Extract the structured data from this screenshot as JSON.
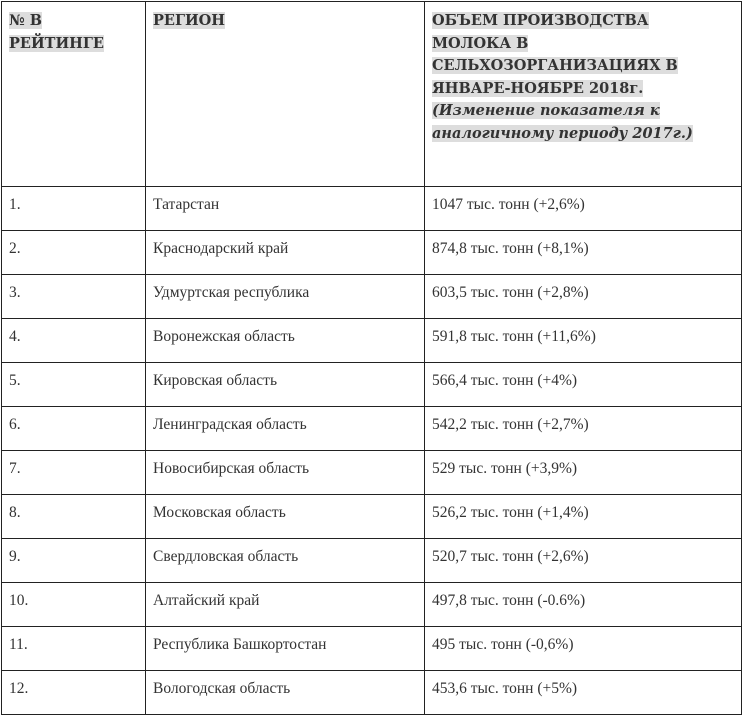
{
  "table": {
    "headers": {
      "rank_line1": "№ В",
      "rank_line2": "РЕЙТИНГЕ",
      "region": "РЕГИОН",
      "volume_lines": [
        "ОБЪЕМ ПРОИЗВОДСТВА",
        "МОЛОКА В",
        "СЕЛЬХОЗОРГАНИЗАЦИЯХ В",
        "ЯНВАРЕ-НОЯБРЕ 2018г."
      ],
      "note_lines": [
        "(Изменение показателя к",
        "аналогичному периоду 2017г.)"
      ]
    },
    "rows": [
      {
        "rank": "1.",
        "region": "Татарстан",
        "volume": "1047 тыс. тонн (+2,6%)"
      },
      {
        "rank": "2.",
        "region": "Краснодарский край",
        "volume": "874,8 тыс. тонн (+8,1%)"
      },
      {
        "rank": "3.",
        "region": "Удмуртская республика",
        "volume": "603,5 тыс. тонн (+2,8%)"
      },
      {
        "rank": "4.",
        "region": "Воронежская область",
        "volume": "591,8 тыс. тонн (+11,6%)"
      },
      {
        "rank": "5.",
        "region": "Кировская область",
        "volume": "566,4 тыс. тонн (+4%)"
      },
      {
        "rank": "6.",
        "region": "Ленинградская область",
        "volume": "542,2 тыс. тонн (+2,7%)"
      },
      {
        "rank": "7.",
        "region": "Новосибирская область",
        "volume": "529 тыс. тонн (+3,9%)"
      },
      {
        "rank": "8.",
        "region": "Московская область",
        "volume": "526,2 тыс. тонн (+1,4%)"
      },
      {
        "rank": "9.",
        "region": "Свердловская область",
        "volume": "520,7 тыс. тонн (+2,6%)"
      },
      {
        "rank": "10.",
        "region": "Алтайский край",
        "volume": "497,8 тыс. тонн (-0.6%)"
      },
      {
        "rank": "11.",
        "region": "Республика Башкортостан",
        "volume": "495 тыс. тонн (-0,6%)"
      },
      {
        "rank": "12.",
        "region": "Вологодская область",
        "volume": "453,6 тыс. тонн (+5%)"
      }
    ]
  }
}
